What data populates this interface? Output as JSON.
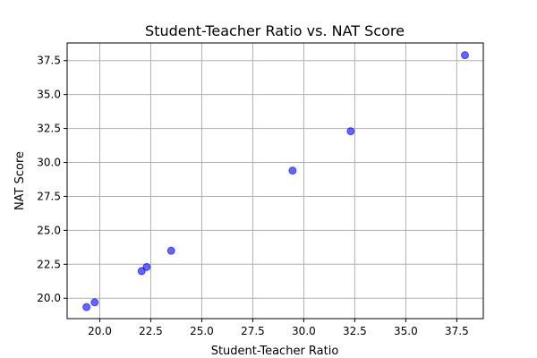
{
  "chart_data": {
    "type": "scatter",
    "title": "Student-Teacher Ratio vs. NAT Score",
    "xlabel": "Student-Teacher Ratio",
    "ylabel": "NAT Score",
    "xlim": [
      18.4,
      38.8
    ],
    "ylim": [
      18.5,
      38.8
    ],
    "xticks": [
      "20.0",
      "22.5",
      "25.0",
      "27.5",
      "30.0",
      "32.5",
      "35.0",
      "37.5"
    ],
    "yticks": [
      "20.0",
      "22.5",
      "25.0",
      "27.5",
      "30.0",
      "32.5",
      "35.0",
      "37.5"
    ],
    "grid": true,
    "color": "#0000ff",
    "points": [
      {
        "x": 19.35,
        "y": 19.35
      },
      {
        "x": 19.75,
        "y": 19.7
      },
      {
        "x": 22.05,
        "y": 22.0
      },
      {
        "x": 22.3,
        "y": 22.3
      },
      {
        "x": 23.5,
        "y": 23.5
      },
      {
        "x": 29.45,
        "y": 29.4
      },
      {
        "x": 32.3,
        "y": 32.3
      },
      {
        "x": 37.9,
        "y": 37.9
      }
    ]
  }
}
